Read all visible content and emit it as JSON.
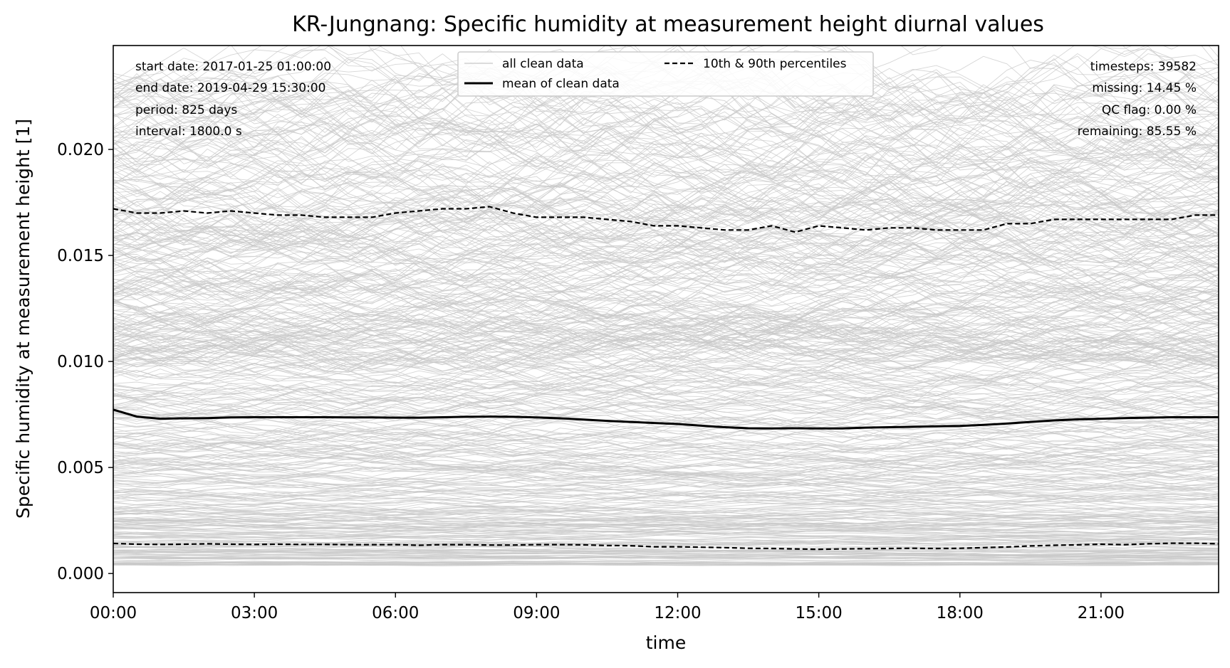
{
  "chart_data": {
    "type": "line",
    "title": "KR-Jungnang: Specific humidity at measurement height diurnal values",
    "xlabel": "time",
    "ylabel": "Specific humidity at measurement height [1]",
    "xlim": [
      0,
      23.5
    ],
    "ylim": [
      -0.0009,
      0.0249
    ],
    "x_ticks": [
      {
        "value": 0,
        "label": "00:00"
      },
      {
        "value": 3,
        "label": "03:00"
      },
      {
        "value": 6,
        "label": "06:00"
      },
      {
        "value": 9,
        "label": "09:00"
      },
      {
        "value": 12,
        "label": "12:00"
      },
      {
        "value": 15,
        "label": "15:00"
      },
      {
        "value": 18,
        "label": "18:00"
      },
      {
        "value": 21,
        "label": "21:00"
      }
    ],
    "y_ticks": [
      {
        "value": 0.0,
        "label": "0.000"
      },
      {
        "value": 0.005,
        "label": "0.005"
      },
      {
        "value": 0.01,
        "label": "0.010"
      },
      {
        "value": 0.015,
        "label": "0.015"
      },
      {
        "value": 0.02,
        "label": "0.020"
      }
    ],
    "grid": false,
    "legend_position": "top-center",
    "x": [
      0,
      0.5,
      1,
      1.5,
      2,
      2.5,
      3,
      3.5,
      4,
      4.5,
      5,
      5.5,
      6,
      6.5,
      7,
      7.5,
      8,
      8.5,
      9,
      9.5,
      10,
      10.5,
      11,
      11.5,
      12,
      12.5,
      13,
      13.5,
      14,
      14.5,
      15,
      15.5,
      16,
      16.5,
      17,
      17.5,
      18,
      18.5,
      19,
      19.5,
      20,
      20.5,
      21,
      21.5,
      22,
      22.5,
      23,
      23.5
    ],
    "series": [
      {
        "name": "mean of clean data",
        "style": "solid",
        "color": "#000000",
        "values": [
          0.00773,
          0.0074,
          0.0073,
          0.00732,
          0.00733,
          0.00736,
          0.00737,
          0.00737,
          0.00737,
          0.00737,
          0.00736,
          0.00736,
          0.00735,
          0.00735,
          0.00737,
          0.00739,
          0.0074,
          0.00739,
          0.00736,
          0.00732,
          0.00726,
          0.0072,
          0.00715,
          0.0071,
          0.00705,
          0.00697,
          0.0069,
          0.00685,
          0.00684,
          0.00685,
          0.00684,
          0.00684,
          0.00688,
          0.0069,
          0.00692,
          0.00694,
          0.00696,
          0.00701,
          0.00707,
          0.00715,
          0.00722,
          0.00727,
          0.0073,
          0.00733,
          0.00735,
          0.00737,
          0.00737,
          0.00737
        ]
      },
      {
        "name": "10th & 90th percentiles",
        "style": "dashed",
        "color": "#000000",
        "values": [
          0.0172,
          0.017,
          0.017,
          0.0171,
          0.017,
          0.0171,
          0.017,
          0.0169,
          0.0169,
          0.0168,
          0.0168,
          0.0168,
          0.017,
          0.0171,
          0.0172,
          0.0172,
          0.0173,
          0.017,
          0.0168,
          0.0168,
          0.0168,
          0.0167,
          0.0166,
          0.0164,
          0.0164,
          0.0163,
          0.0162,
          0.0162,
          0.0164,
          0.0161,
          0.0164,
          0.0163,
          0.0162,
          0.0163,
          0.0163,
          0.0162,
          0.0162,
          0.0162,
          0.0165,
          0.0165,
          0.0167,
          0.0167,
          0.0167,
          0.0167,
          0.0167,
          0.0167,
          0.0169,
          0.0169
        ]
      },
      {
        "name": "10th & 90th percentiles",
        "style": "dashed",
        "color": "#000000",
        "values": [
          0.00142,
          0.00138,
          0.00137,
          0.00138,
          0.0014,
          0.00138,
          0.00137,
          0.00138,
          0.00137,
          0.00137,
          0.00136,
          0.00136,
          0.00136,
          0.00133,
          0.00136,
          0.00136,
          0.00134,
          0.00134,
          0.00136,
          0.00136,
          0.00135,
          0.00132,
          0.00131,
          0.00126,
          0.00126,
          0.00124,
          0.00122,
          0.00119,
          0.00118,
          0.00116,
          0.00114,
          0.00116,
          0.00117,
          0.00118,
          0.00119,
          0.00118,
          0.00119,
          0.00122,
          0.00125,
          0.0013,
          0.00133,
          0.00135,
          0.00138,
          0.00136,
          0.0014,
          0.00143,
          0.00143,
          0.0014
        ]
      }
    ],
    "background_traces": {
      "name": "all clean data",
      "color": "#c8c8c8",
      "count": 825,
      "range": [
        0.0004,
        0.0235
      ]
    }
  },
  "info_left": [
    "start date: 2017-01-25 01:00:00",
    "end date: 2019-04-29 15:30:00",
    "period: 825 days",
    "interval: 1800.0 s"
  ],
  "info_right": [
    "timesteps: 39582",
    "missing: 14.45 %",
    "QC flag: 0.00 %",
    "remaining: 85.55 %"
  ],
  "legend": {
    "items": [
      {
        "label": "all clean data",
        "style": "thin-gray"
      },
      {
        "label": "10th & 90th percentiles",
        "style": "dashed"
      },
      {
        "label": "mean of clean data",
        "style": "solid"
      }
    ]
  }
}
